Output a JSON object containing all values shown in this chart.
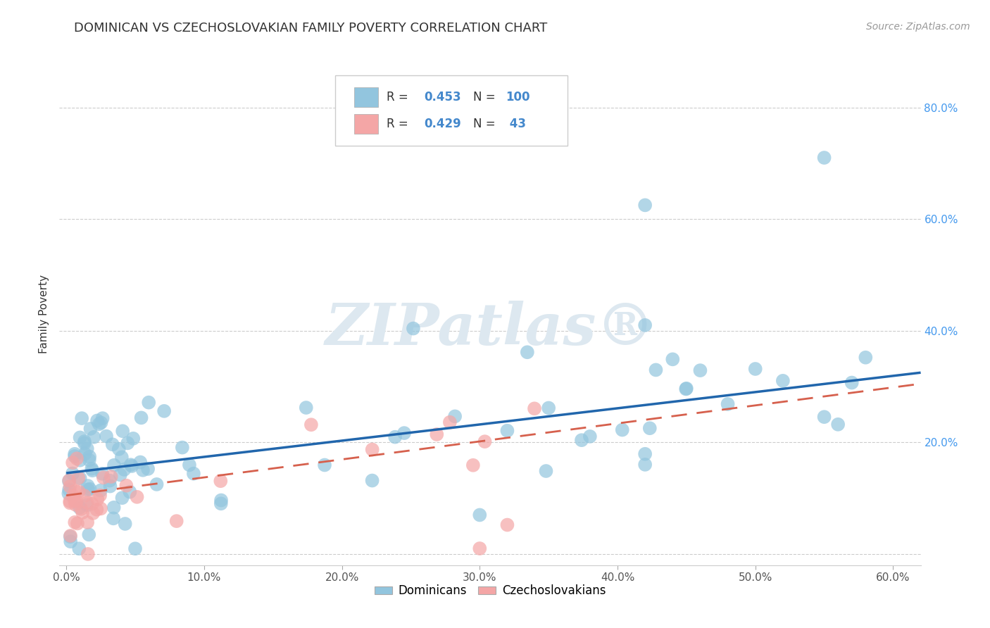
{
  "title": "DOMINICAN VS CZECHOSLOVAKIAN FAMILY POVERTY CORRELATION CHART",
  "source": "Source: ZipAtlas.com",
  "ylabel": "Family Poverty",
  "yticks": [
    0.0,
    0.2,
    0.4,
    0.6,
    0.8
  ],
  "ytick_labels": [
    "",
    "20.0%",
    "40.0%",
    "60.0%",
    "80.0%"
  ],
  "xticks": [
    0.0,
    0.1,
    0.2,
    0.3,
    0.4,
    0.5,
    0.6
  ],
  "xtick_labels": [
    "0.0%",
    "10.0%",
    "20.0%",
    "30.0%",
    "40.0%",
    "50.0%",
    "60.0%"
  ],
  "xlim": [
    -0.005,
    0.62
  ],
  "ylim": [
    -0.02,
    0.88
  ],
  "dominicans_R": "0.453",
  "dominicans_N": "100",
  "czechoslovakians_R": "0.429",
  "czechoslovakians_N": "43",
  "dominican_color": "#92c5de",
  "czechoslovakian_color": "#f4a6a6",
  "dominican_line_color": "#2166ac",
  "czechoslovakian_line_color": "#d6604d",
  "legend_text_color": "#4488cc",
  "watermark_color": "#dde8f0",
  "background_color": "#ffffff",
  "grid_color": "#cccccc",
  "ytick_color": "#4499ee",
  "dom_line_start_y": 0.145,
  "dom_line_end_y": 0.325,
  "czech_line_start_y": 0.105,
  "czech_line_end_y": 0.305
}
